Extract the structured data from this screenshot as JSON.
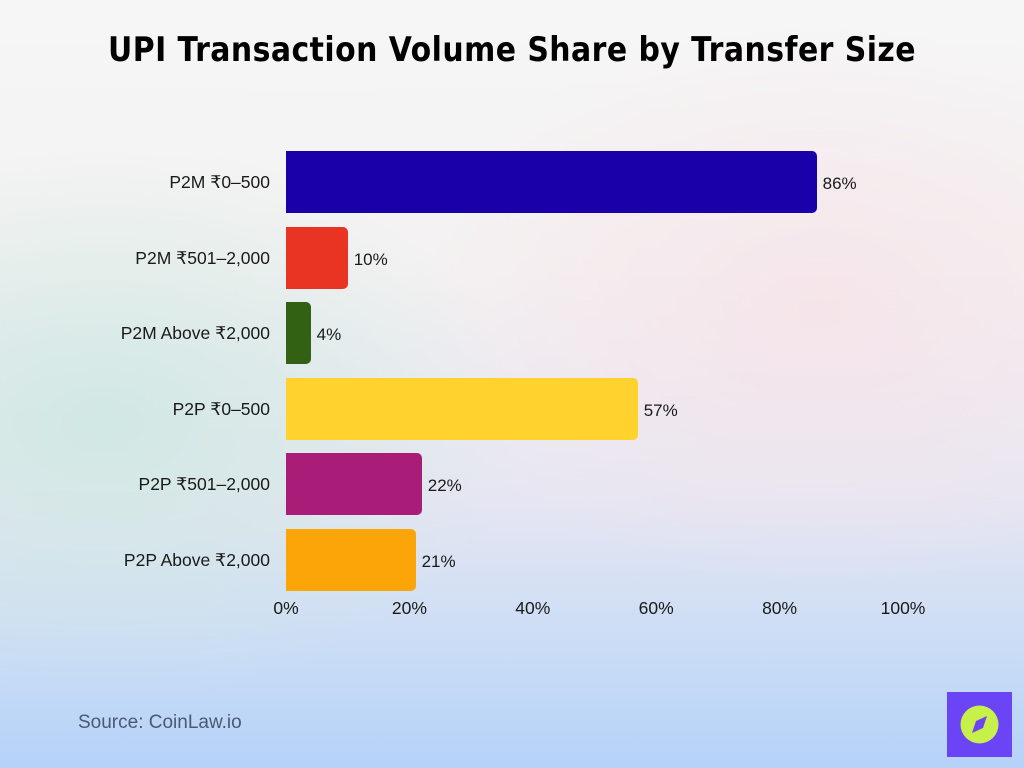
{
  "title": "UPI Transaction Volume Share by Transfer Size",
  "source": "Source: CoinLaw.io",
  "logo": {
    "icon": "compass-icon",
    "bg_color": "#6b44f5",
    "fg_color": "#c8f04a"
  },
  "chart_data": {
    "type": "bar",
    "orientation": "horizontal",
    "title": "UPI Transaction Volume Share by Transfer Size",
    "xlabel": "",
    "ylabel": "",
    "xlim": [
      0,
      100
    ],
    "grid": false,
    "legend": "none",
    "categories": [
      "P2M ₹0–500",
      "P2M ₹501–2,000",
      "P2M Above ₹2,000",
      "P2P ₹0–500",
      "P2P ₹501–2,000",
      "P2P Above ₹2,000"
    ],
    "values": [
      86,
      10,
      4,
      57,
      22,
      21
    ],
    "value_labels": [
      "86%",
      "10%",
      "4%",
      "57%",
      "22%",
      "21%"
    ],
    "colors": [
      "#1a00a8",
      "#e93323",
      "#336114",
      "#ffd22e",
      "#a91c78",
      "#fba508"
    ],
    "x_ticks": [
      "0%",
      "20%",
      "40%",
      "60%",
      "80%",
      "100%"
    ]
  }
}
